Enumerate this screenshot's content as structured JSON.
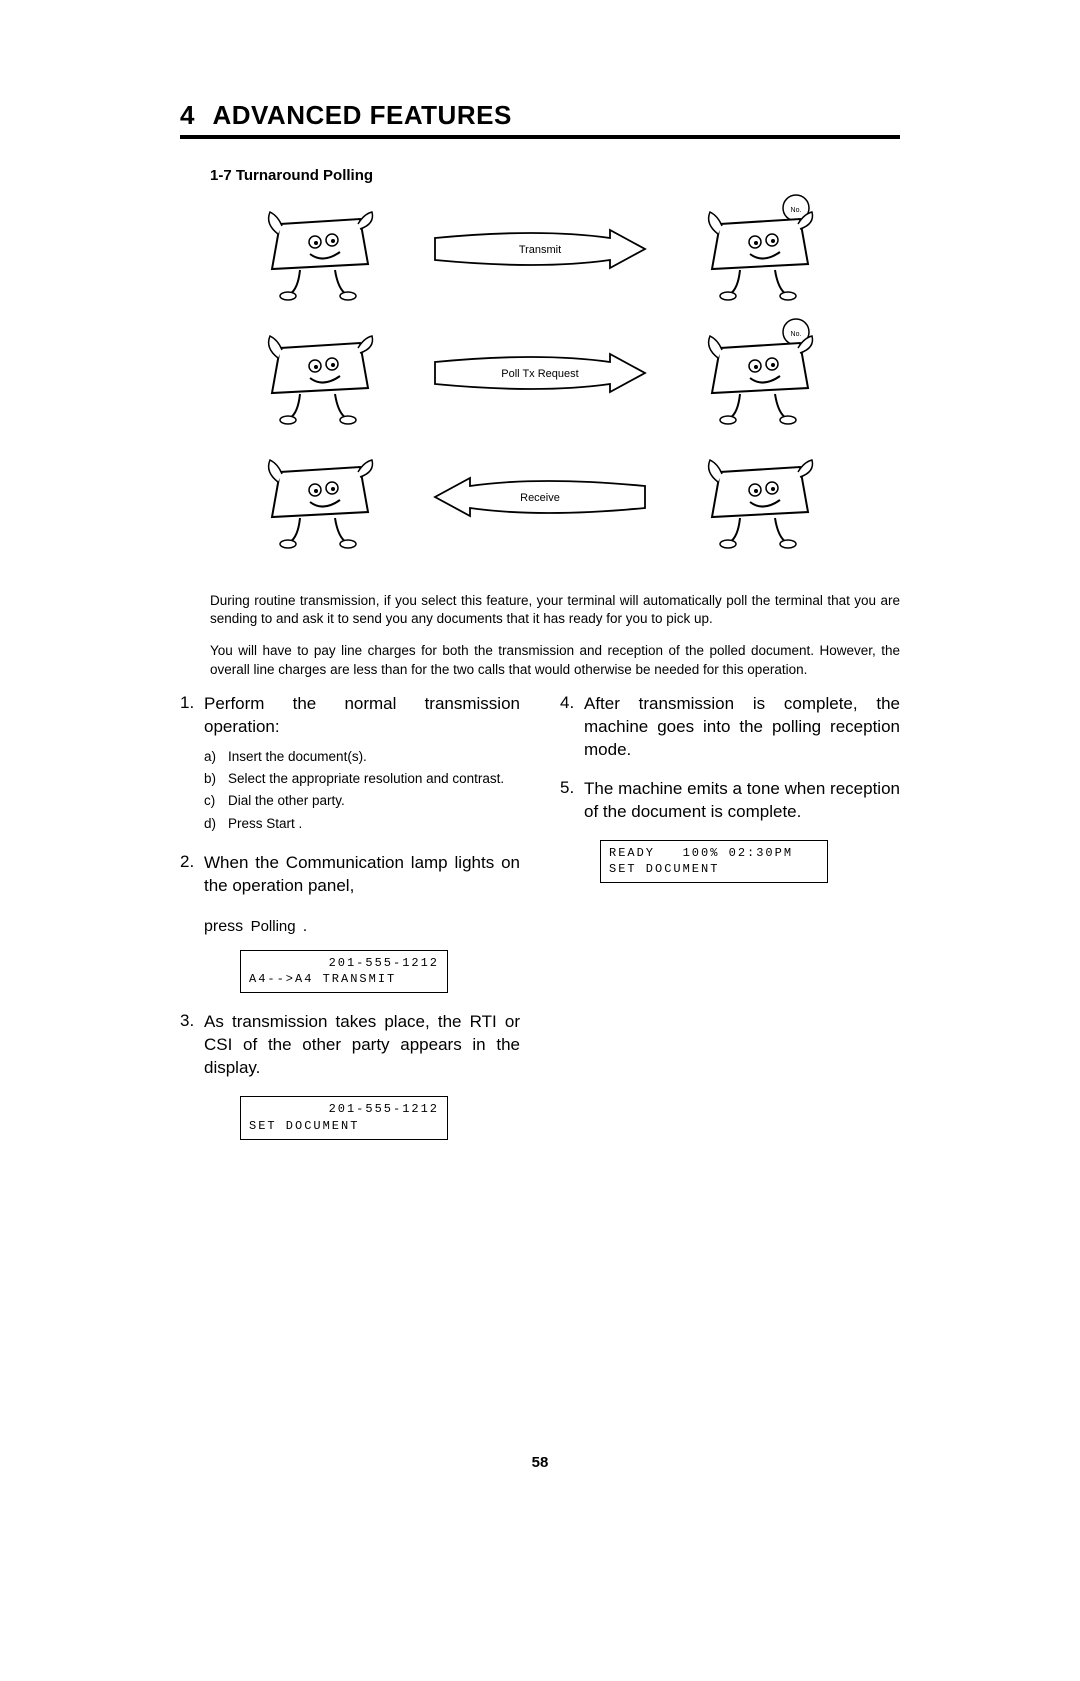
{
  "chapter": {
    "num": "4",
    "title": "ADVANCED FEATURES"
  },
  "subsection": "1-7  Turnaround Polling",
  "diagram": {
    "rows": [
      {
        "label": "Transmit",
        "dir": "right"
      },
      {
        "label": "Poll Tx Request",
        "dir": "right"
      },
      {
        "label": "Receive",
        "dir": "left"
      }
    ]
  },
  "intro_p1": "During routine transmission, if you select this feature, your terminal will automatically poll the terminal that you are sending to and ask it to send you any documents that it has ready for you to pick up.",
  "intro_p2": "You will have to pay line charges for both the transmission and reception of the polled document. However, the overall line charges are less than for the two calls that would otherwise be needed for this operation.",
  "left_steps": [
    {
      "num": "1.",
      "text": "Perform the normal transmission operation:",
      "subs": [
        {
          "l": "a)",
          "t": "Insert the document(s)."
        },
        {
          "l": "b)",
          "t": "Select the appropriate resolution and contrast."
        },
        {
          "l": "c)",
          "t": "Dial the other party."
        },
        {
          "l": "d)",
          "t": "Press  Start  ."
        }
      ]
    },
    {
      "num": "2.",
      "text": "When the Communication lamp lights on the operation panel,",
      "press": {
        "verb": "press",
        "button": "Polling",
        "tail": " ."
      },
      "lcd": {
        "line1": "201-555-1212",
        "line2": "A4-->A4  TRANSMIT"
      }
    },
    {
      "num": "3.",
      "text": "As transmission takes place, the RTI or CSI of the other party appears in the display.",
      "lcd": {
        "line1": "201-555-1212",
        "line2": "SET  DOCUMENT"
      }
    }
  ],
  "right_steps": [
    {
      "num": "4.",
      "text": "After transmission is complete, the machine goes into the polling reception mode."
    },
    {
      "num": "5.",
      "text": "The machine emits a tone when reception of the document is complete.",
      "lcd": {
        "line1": "READY   100% 02:30PM",
        "line2": "SET  DOCUMENT"
      }
    }
  ],
  "page_number": "58",
  "colors": {
    "text": "#000000",
    "bg": "#ffffff",
    "rule": "#000000"
  }
}
